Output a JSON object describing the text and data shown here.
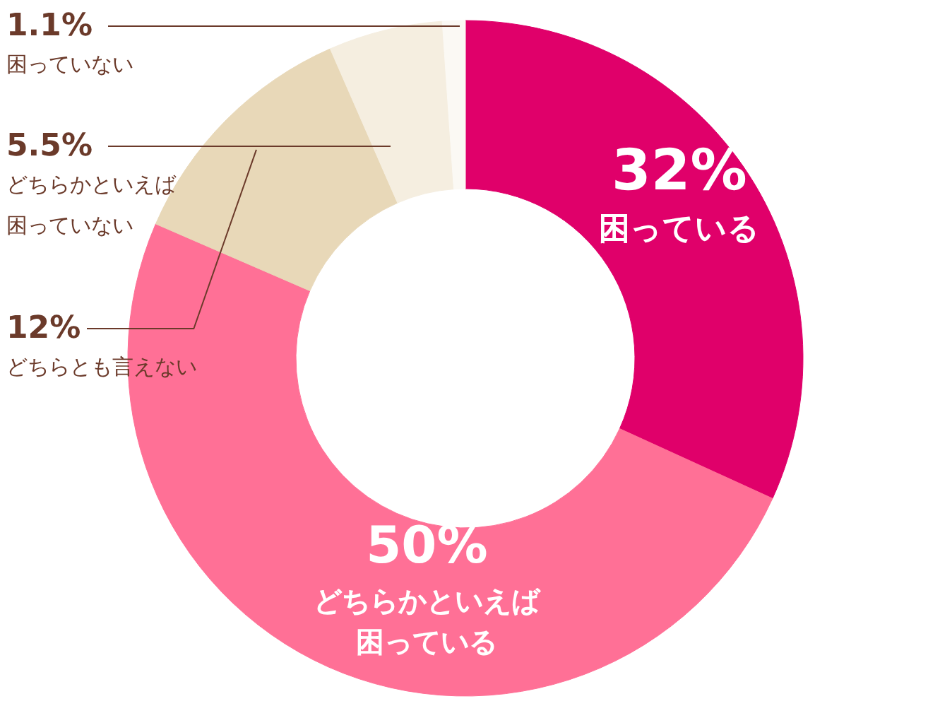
{
  "chart_data": {
    "type": "donut",
    "categories": [
      "困っている",
      "どちらかといえば困っている",
      "どちらとも言えない",
      "どちらかといえば困っていない",
      "困っていない"
    ],
    "values": [
      32,
      50,
      12,
      5.5,
      1.1
    ],
    "value_labels": [
      "32%",
      "50%",
      "12%",
      "5.5%",
      "1.1%"
    ],
    "colors": [
      "#e0006a",
      "#ff7096",
      "#e8d8b8",
      "#f5eee0",
      "#fbf9f4"
    ]
  }
}
